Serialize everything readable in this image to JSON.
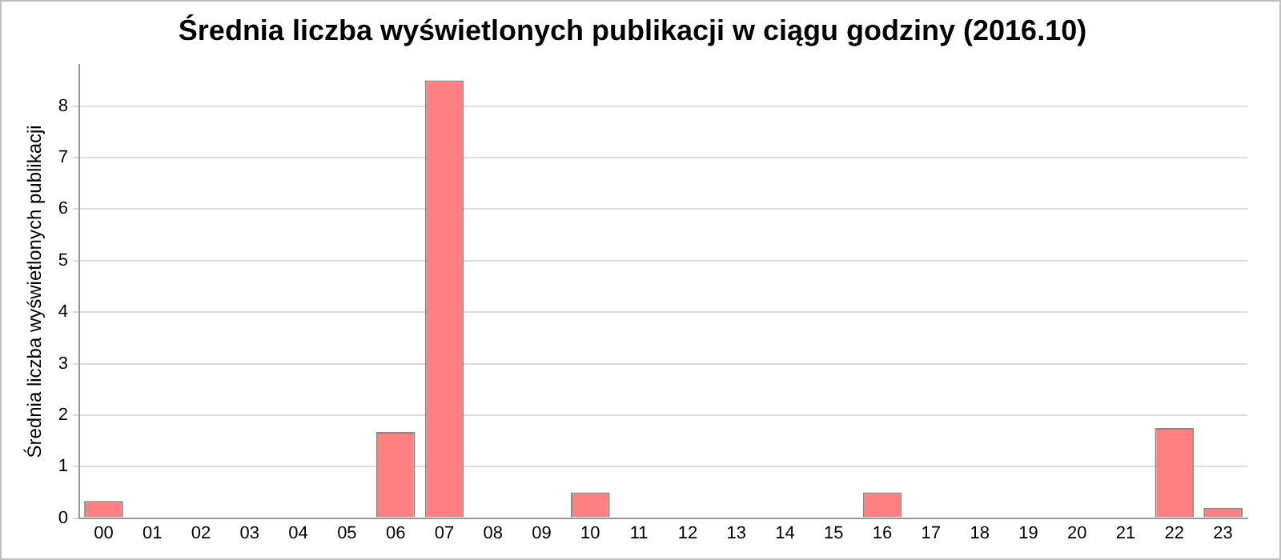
{
  "chart_data": {
    "type": "bar",
    "title": "Średnia liczba wyświetlonych publikacji w ciągu godziny (2016.10)",
    "ylabel": "Średnia liczba wyświetlonych publikacji",
    "categories": [
      "00",
      "01",
      "02",
      "03",
      "04",
      "05",
      "06",
      "07",
      "08",
      "09",
      "10",
      "11",
      "12",
      "13",
      "14",
      "15",
      "16",
      "17",
      "18",
      "19",
      "20",
      "21",
      "22",
      "23"
    ],
    "values": [
      0.33,
      0,
      0,
      0,
      0,
      0,
      1.67,
      8.5,
      0,
      0,
      0.5,
      0,
      0,
      0,
      0,
      0,
      0.5,
      0,
      0,
      0,
      0,
      0,
      1.75,
      0.2
    ],
    "color": "#ff8080",
    "ylim": [
      0,
      8.8
    ],
    "yticks": [
      0,
      1,
      2,
      3,
      4,
      5,
      6,
      7,
      8
    ],
    "grid": "y",
    "legend": false
  }
}
